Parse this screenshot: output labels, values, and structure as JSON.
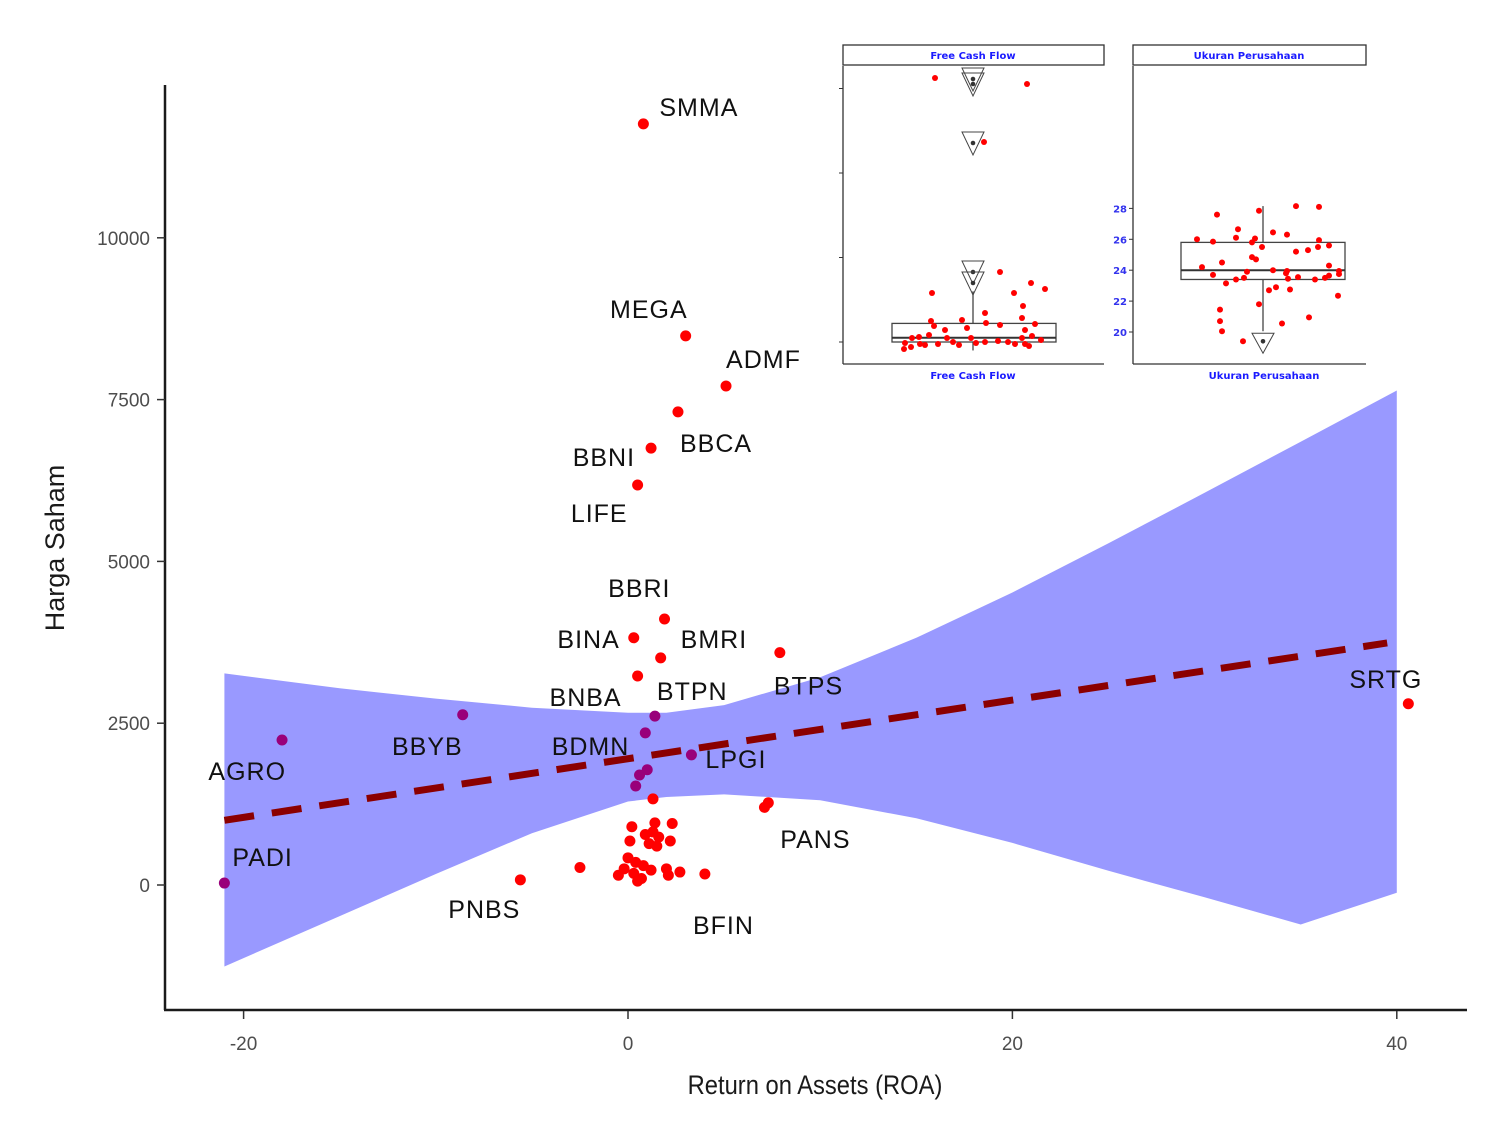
{
  "chart_data": {
    "type": "scatter",
    "xlabel": "Return on Assets (ROA)",
    "ylabel": "Harga Saham",
    "xlim": [
      -25,
      44
    ],
    "ylim": [
      -1900,
      12500
    ],
    "x_ticks": [
      -20,
      0,
      20,
      40
    ],
    "x_tick_labels": [
      "-20",
      "0",
      "20",
      "40"
    ],
    "y_ticks": [
      0,
      2500,
      5000,
      7500,
      10000
    ],
    "y_tick_labels": [
      "0",
      "2500",
      "5000",
      "7500",
      "10000"
    ],
    "grid": false,
    "colors": {
      "point": "#ff0000",
      "point_in_band": "#99007a",
      "trend": "#8b0000",
      "band": "#9999ff",
      "axis": "#1a1a1a"
    },
    "labeled_points": [
      {
        "label": "SMMA",
        "x": 0.8,
        "y": 11760
      },
      {
        "label": "MEGA",
        "x": 3.0,
        "y": 8485
      },
      {
        "label": "ADMF",
        "x": 5.1,
        "y": 7710
      },
      {
        "label": "BBCA",
        "x": 2.6,
        "y": 7310
      },
      {
        "label": "BBNI",
        "x": 1.2,
        "y": 6750
      },
      {
        "label": "LIFE",
        "x": 0.5,
        "y": 6180
      },
      {
        "label": "BBRI",
        "x": 1.9,
        "y": 4110
      },
      {
        "label": "BINA",
        "x": 0.3,
        "y": 3820
      },
      {
        "label": "BMRI",
        "x": 1.7,
        "y": 3510
      },
      {
        "label": "BTPS",
        "x": 7.9,
        "y": 3590
      },
      {
        "label": "BNBA",
        "x": 0.5,
        "y": 3230
      },
      {
        "label": "BTPN",
        "x": 1.4,
        "y": 2610
      },
      {
        "label": "BBYB",
        "x": -8.6,
        "y": 2630
      },
      {
        "label": "AGRO",
        "x": -18.0,
        "y": 2240
      },
      {
        "label": "BDMN",
        "x": 0.9,
        "y": 2350
      },
      {
        "label": "LPGI",
        "x": 3.3,
        "y": 2010
      },
      {
        "label": "BFIN",
        "x": 1.3,
        "y": 1330
      },
      {
        "label": "PANS",
        "x": 7.3,
        "y": 1270
      },
      {
        "label": "PADI",
        "x": -21.0,
        "y": 30
      },
      {
        "label": "PNBS",
        "x": -5.6,
        "y": 80
      },
      {
        "label": "SRTG",
        "x": 40.6,
        "y": 2800
      }
    ],
    "other_points": [
      {
        "x": 0.6,
        "y": 1700
      },
      {
        "x": 1.0,
        "y": 1780
      },
      {
        "x": 0.4,
        "y": 1530
      },
      {
        "x": 7.1,
        "y": 1200
      },
      {
        "x": 0.2,
        "y": 900
      },
      {
        "x": 1.4,
        "y": 960
      },
      {
        "x": 2.3,
        "y": 950
      },
      {
        "x": 0.1,
        "y": 680
      },
      {
        "x": 0.9,
        "y": 780
      },
      {
        "x": 1.3,
        "y": 820
      },
      {
        "x": 1.6,
        "y": 740
      },
      {
        "x": 2.2,
        "y": 680
      },
      {
        "x": 1.1,
        "y": 640
      },
      {
        "x": 1.5,
        "y": 600
      },
      {
        "x": -2.5,
        "y": 270
      },
      {
        "x": 0.0,
        "y": 420
      },
      {
        "x": 0.4,
        "y": 350
      },
      {
        "x": 0.8,
        "y": 300
      },
      {
        "x": -0.5,
        "y": 150
      },
      {
        "x": 0.3,
        "y": 180
      },
      {
        "x": 0.7,
        "y": 100
      },
      {
        "x": 1.2,
        "y": 230
      },
      {
        "x": 2.0,
        "y": 250
      },
      {
        "x": 2.1,
        "y": 150
      },
      {
        "x": 2.7,
        "y": 200
      },
      {
        "x": 4.0,
        "y": 170
      },
      {
        "x": 0.5,
        "y": 60
      },
      {
        "x": -0.2,
        "y": 250
      }
    ],
    "trend_line": {
      "style": "dashed",
      "x": [
        -21.0,
        39.5
      ],
      "y": [
        1000,
        3740
      ]
    },
    "confidence_band": {
      "x": [
        -21,
        -15,
        -10,
        -5,
        0,
        2,
        5,
        10,
        15,
        20,
        25,
        30,
        35,
        40
      ],
      "upper": [
        3270,
        3040,
        2880,
        2740,
        2660,
        2660,
        2780,
        3210,
        3820,
        4520,
        5280,
        6060,
        6850,
        7640
      ],
      "lower": [
        -1260,
        -480,
        170,
        800,
        1290,
        1360,
        1400,
        1310,
        1030,
        650,
        220,
        -190,
        -610,
        -120
      ]
    },
    "insets": [
      {
        "type": "boxplot",
        "title": "Free Cash Flow",
        "xlabel": "Free Cash Flow",
        "y_tick_labels": [],
        "box": {
          "q1": 0.0,
          "median": 0.05,
          "q3": 0.22,
          "whisker_low": -0.1,
          "whisker_high": 0.6
        },
        "outliers": [
          0.67,
          0.58,
          3.2,
          3.22,
          3.25,
          2.45
        ],
        "scale_note": "tick positions at 0, 1, 2, 3 (unlabeled)"
      },
      {
        "type": "boxplot",
        "title": "Ukuran Perusahaan",
        "xlabel": "Ukuran Perusahaan",
        "y_ticks": [
          20,
          22,
          24,
          26,
          28
        ],
        "y_tick_labels": [
          "20",
          "22",
          "24",
          "26",
          "28"
        ],
        "box": {
          "q1": 23.4,
          "median": 24.0,
          "q3": 25.8,
          "whisker_low": 20.05,
          "whisker_high": 28.15
        },
        "outliers": [
          19.4
        ],
        "points": [
          28.15,
          28.1,
          27.6,
          27.85,
          26.65,
          26.45,
          26.3,
          26.1,
          26.05,
          26.0,
          25.95,
          25.85,
          25.8,
          25.6,
          25.5,
          25.5,
          25.3,
          25.2,
          24.85,
          24.7,
          24.5,
          24.3,
          24.2,
          24.0,
          23.95,
          23.95,
          23.9,
          23.8,
          23.75,
          23.7,
          23.65,
          23.55,
          23.5,
          23.5,
          23.45,
          23.4,
          23.4,
          23.15,
          22.9,
          22.75,
          22.7,
          22.35,
          21.8,
          21.45,
          20.95,
          20.7,
          20.55,
          20.05,
          19.4
        ]
      }
    ]
  }
}
